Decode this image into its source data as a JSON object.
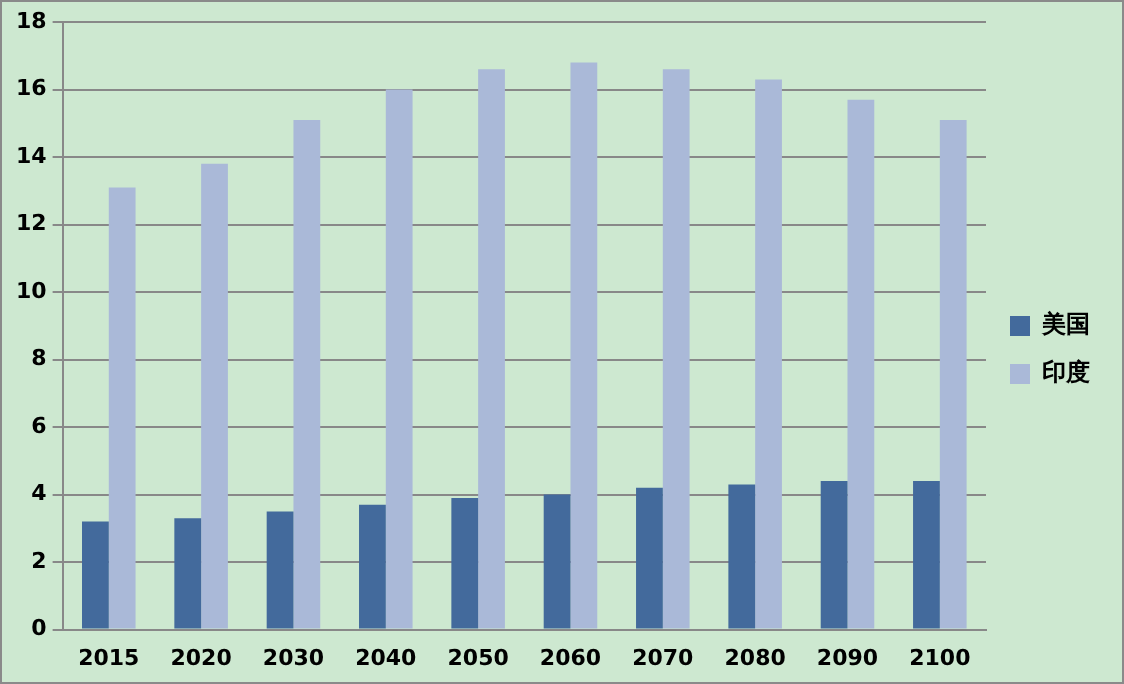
{
  "chart_data": {
    "type": "bar",
    "categories": [
      "2015",
      "2020",
      "2030",
      "2040",
      "2050",
      "2060",
      "2070",
      "2080",
      "2090",
      "2100"
    ],
    "series": [
      {
        "name": "美国",
        "color": "#436a9c",
        "values": [
          3.2,
          3.3,
          3.5,
          3.7,
          3.9,
          4.0,
          4.2,
          4.3,
          4.4,
          4.4
        ]
      },
      {
        "name": "印度",
        "color": "#aab9d8",
        "values": [
          13.1,
          13.8,
          15.1,
          16.0,
          16.6,
          16.8,
          16.6,
          16.3,
          15.7,
          15.1
        ]
      }
    ],
    "ylim": [
      0,
      18
    ],
    "yticks": [
      0,
      2,
      4,
      6,
      8,
      10,
      12,
      14,
      16,
      18
    ],
    "grid": "y",
    "legend": "right"
  }
}
